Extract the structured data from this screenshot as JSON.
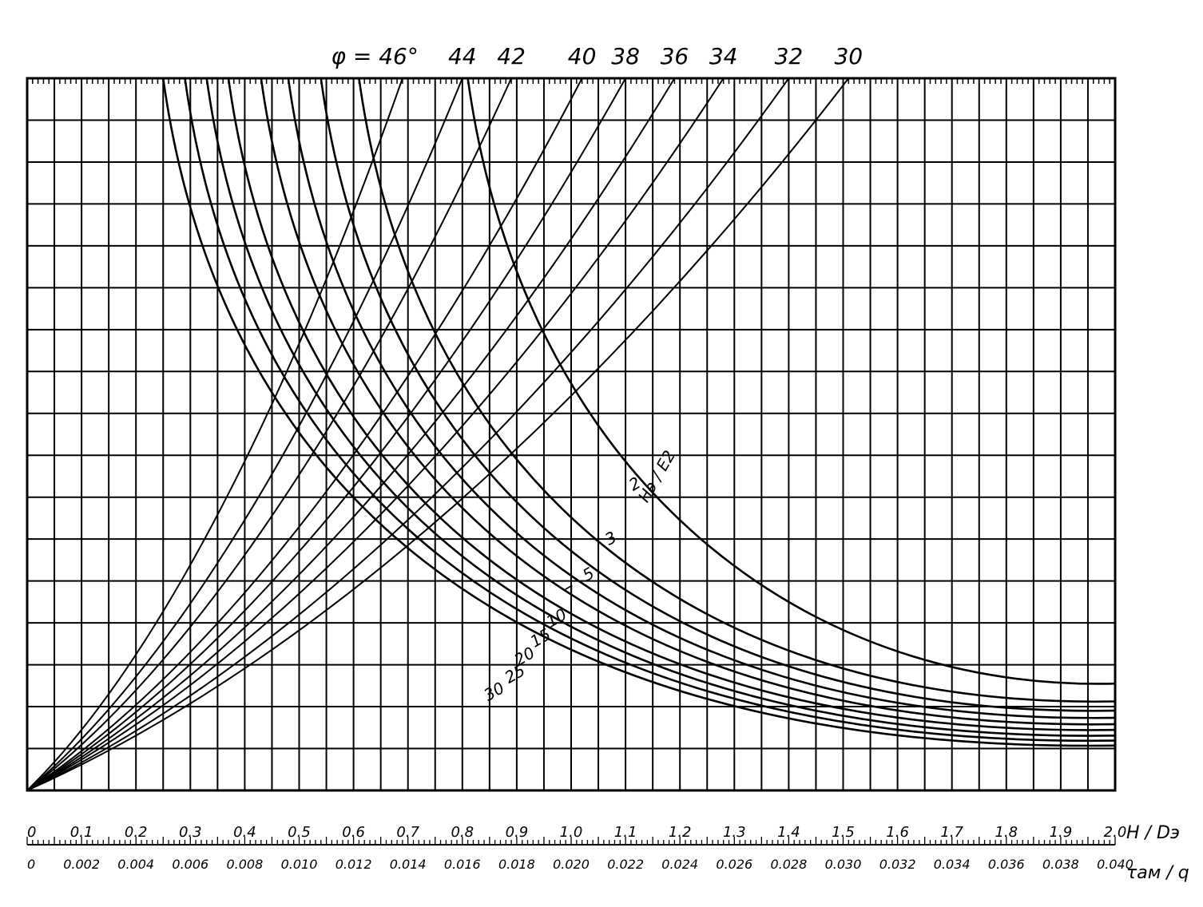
{
  "chart_data": {
    "type": "line",
    "title": "",
    "xlabel": "H / Dэ",
    "x2label": "τам / q",
    "ylabel": "",
    "xlim": [
      0,
      2.0
    ],
    "x_ticks": [
      "0",
      "0.1",
      "0.2",
      "0.3",
      "0.4",
      "0.5",
      "0.6",
      "0.7",
      "0.8",
      "0.9",
      "1.0",
      "1.1",
      "1.2",
      "1.3",
      "1.4",
      "1.5",
      "1.6",
      "1.7",
      "1.8",
      "1.9",
      "2.0"
    ],
    "x2_ticks": [
      "0",
      "0.002",
      "0.004",
      "0.006",
      "0.008",
      "0.010",
      "0.012",
      "0.014",
      "0.016",
      "0.018",
      "0.020",
      "0.022",
      "0.024",
      "0.026",
      "0.028",
      "0.030",
      "0.032",
      "0.034",
      "0.036",
      "0.038",
      "0.040"
    ],
    "phi_prefix": "φ = ",
    "phi_series": [
      {
        "label": "46°",
        "top_x": 0.69
      },
      {
        "label": "44",
        "top_x": 0.8
      },
      {
        "label": "42",
        "top_x": 0.89
      },
      {
        "label": "40",
        "top_x": 1.02
      },
      {
        "label": "38",
        "top_x": 1.1
      },
      {
        "label": "36",
        "top_x": 1.19
      },
      {
        "label": "34",
        "top_x": 1.28
      },
      {
        "label": "32",
        "top_x": 1.4
      },
      {
        "label": "30",
        "top_x": 1.51
      }
    ],
    "he_series": [
      {
        "label": "2",
        "top_x": 0.81,
        "end_frac": 0.15
      },
      {
        "label": "3",
        "top_x": 0.61,
        "end_frac": 0.125
      },
      {
        "label": "5",
        "top_x": 0.54,
        "end_frac": 0.112
      },
      {
        "label": "7",
        "top_x": 0.48,
        "end_frac": 0.102
      },
      {
        "label": "10",
        "top_x": 0.43,
        "end_frac": 0.093
      },
      {
        "label": "15",
        "top_x": 0.37,
        "end_frac": 0.085
      },
      {
        "label": "20",
        "top_x": 0.33,
        "end_frac": 0.077
      },
      {
        "label": "25",
        "top_x": 0.29,
        "end_frac": 0.07
      },
      {
        "label": "30",
        "top_x": 0.25,
        "end_frac": 0.063
      }
    ],
    "he_axis_label": "Hэ / E2",
    "legend": "none",
    "grid": true
  }
}
